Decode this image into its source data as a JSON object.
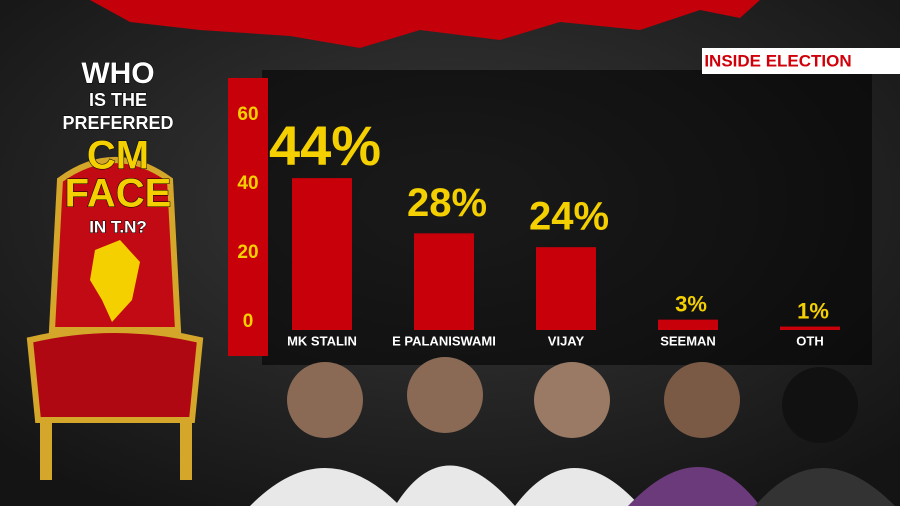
{
  "chart_data": {
    "type": "bar",
    "title": [
      "WHO",
      "IS THE",
      "PREFERRED",
      "CM",
      "FACE",
      "IN T.N?"
    ],
    "brand": "INSIDE ELECTION",
    "categories": [
      "MK STALIN",
      "E PALANISWAMI",
      "VIJAY",
      "SEEMAN",
      "OTH"
    ],
    "values": [
      44,
      28,
      24,
      3,
      1
    ],
    "value_labels": [
      "44%",
      "28%",
      "24%",
      "3%",
      "1%"
    ],
    "color": "#c8000a",
    "ylim": [
      0,
      73
    ],
    "yticks": [
      0,
      20,
      40,
      60
    ],
    "grid": false
  }
}
